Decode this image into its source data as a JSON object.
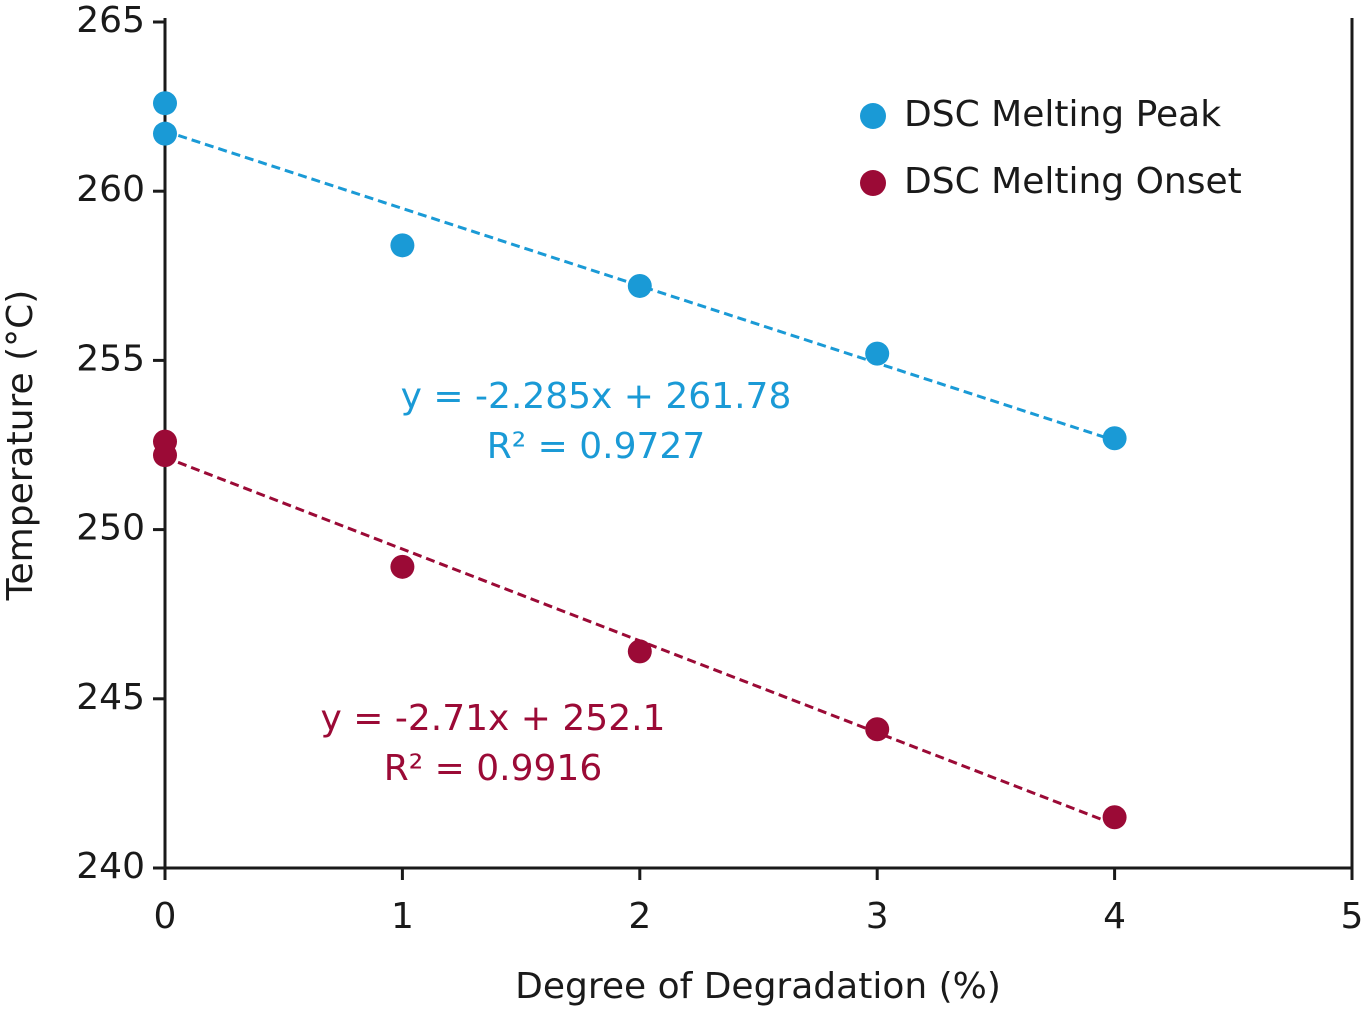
{
  "chart_data": {
    "type": "scatter",
    "xlabel": "Degree of Degradation (%)",
    "ylabel": "Temperature (°C)",
    "xlim": [
      0,
      5
    ],
    "xticks": [
      0,
      1,
      2,
      3,
      4,
      5
    ],
    "ylim": [
      240,
      265
    ],
    "yticks": [
      240,
      245,
      250,
      255,
      260,
      265
    ],
    "legend": "upper right",
    "series": [
      {
        "name": "DSC Melting Peak",
        "color": "#1a9ad6",
        "x": [
          0,
          0,
          1,
          2,
          3,
          4
        ],
        "values": [
          262.6,
          261.7,
          258.4,
          257.2,
          255.2,
          252.7
        ],
        "trendline_label": [
          "y = -2.285x + 261.78",
          "R² = 0.9727"
        ]
      },
      {
        "name": "DSC Melting Onset",
        "color": "#9b0a36",
        "x": [
          0,
          0,
          1,
          2,
          3,
          4
        ],
        "values": [
          252.6,
          252.2,
          248.9,
          246.4,
          244.1,
          241.5
        ],
        "trendline_label": [
          "y = -2.71x + 252.1",
          "R² = 0.9916"
        ]
      }
    ]
  }
}
